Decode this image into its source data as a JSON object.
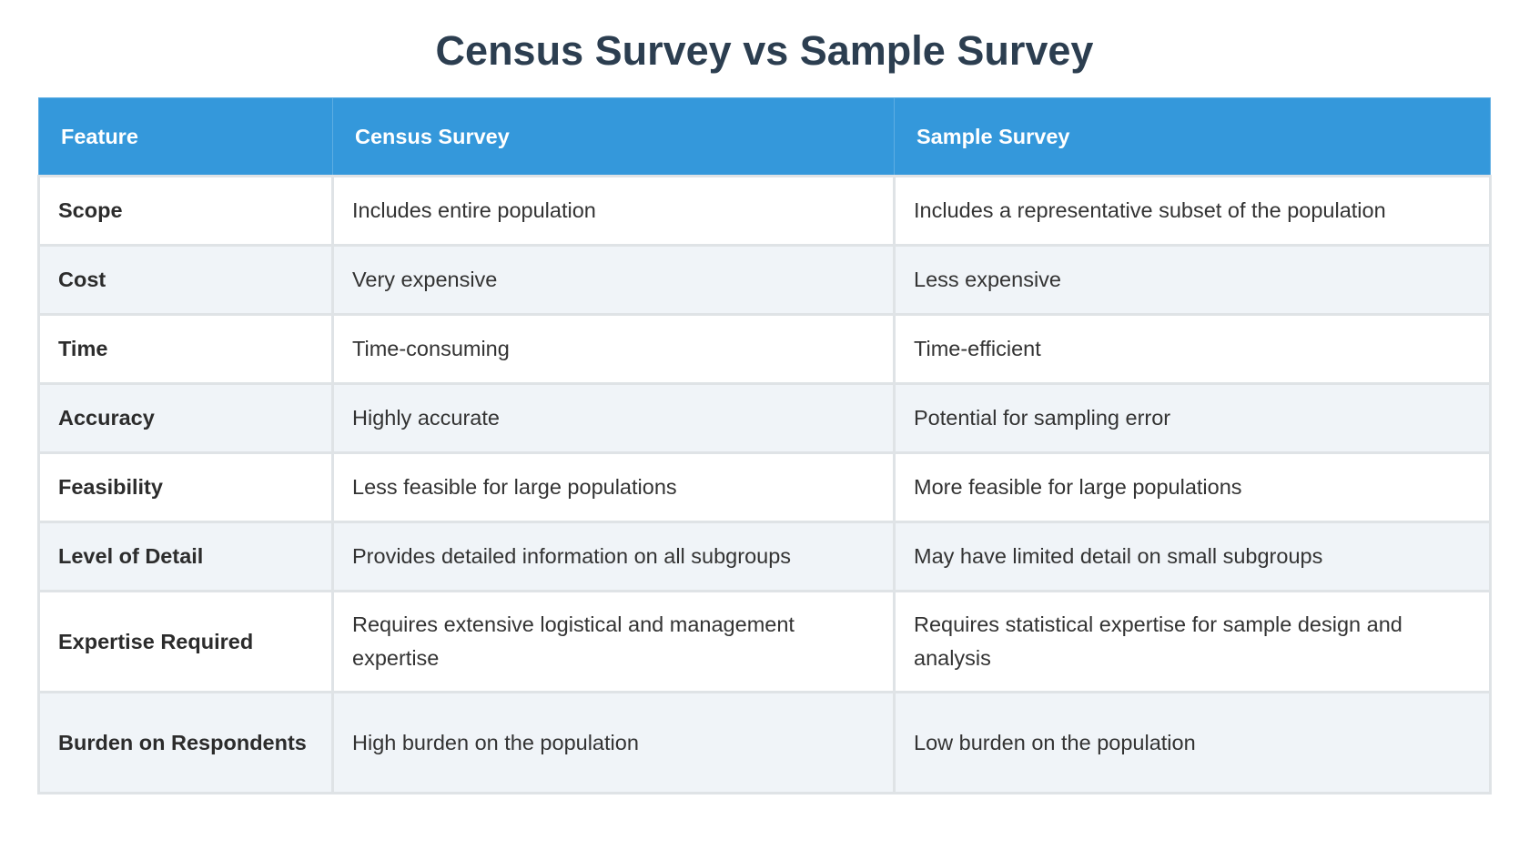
{
  "title": "Census Survey vs Sample Survey",
  "headers": [
    "Feature",
    "Census Survey",
    "Sample Survey"
  ],
  "rows": [
    [
      "Scope",
      "Includes entire population",
      "Includes a representative subset of the population"
    ],
    [
      "Cost",
      "Very expensive",
      "Less expensive"
    ],
    [
      "Time",
      "Time-consuming",
      "Time-efficient"
    ],
    [
      "Accuracy",
      "Highly accurate",
      "Potential for sampling error"
    ],
    [
      "Feasibility",
      "Less feasible for large populations",
      "More feasible for large populations"
    ],
    [
      "Level of Detail",
      "Provides detailed information on all subgroups",
      "May have limited detail on small subgroups"
    ],
    [
      "Expertise Required",
      "Requires extensive logistical and management expertise",
      "Requires statistical expertise for sample design and analysis"
    ],
    [
      "Burden on Respondents",
      "High burden on the population",
      "Low burden on the population"
    ]
  ],
  "colors": {
    "header_bg": "#3498db",
    "title": "#2c3e50",
    "alt_row": "#f0f4f8"
  }
}
